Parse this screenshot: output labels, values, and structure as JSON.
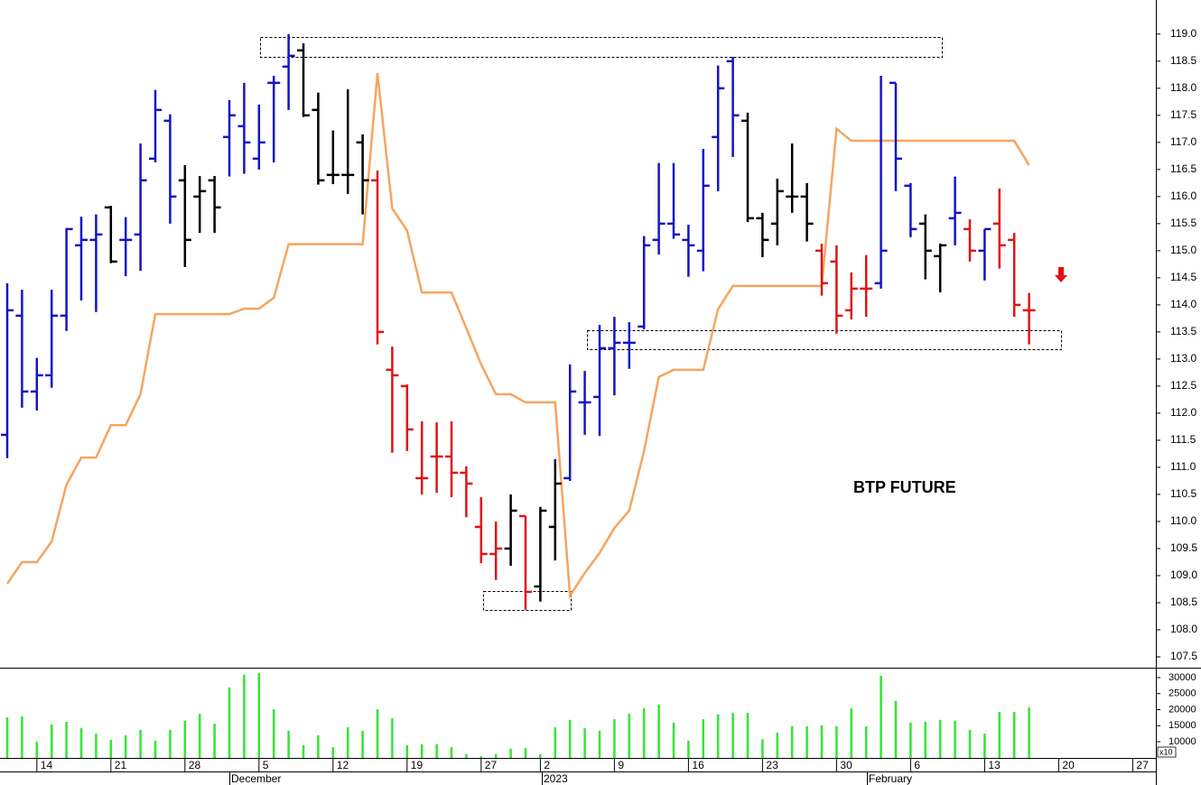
{
  "chart_data": {
    "type": "ohlc",
    "annotation": "BTP FUTURE",
    "categories": [
      null,
      null,
      "14",
      null,
      null,
      null,
      null,
      "21",
      null,
      null,
      null,
      null,
      "28",
      null,
      null,
      null,
      null,
      "5",
      null,
      null,
      null,
      null,
      "12",
      null,
      null,
      null,
      null,
      "19",
      null,
      null,
      null,
      null,
      "27",
      null,
      null,
      null,
      "2",
      null,
      null,
      null,
      null,
      "9",
      null,
      null,
      null,
      null,
      "16",
      null,
      null,
      null,
      null,
      "23",
      null,
      null,
      null,
      null,
      "30",
      null,
      null,
      null,
      null,
      "6",
      null,
      null,
      null,
      null,
      "13",
      null,
      null,
      null,
      null,
      "20",
      null,
      null,
      null,
      null,
      "27",
      null
    ],
    "period_labels": [
      "December",
      "2023",
      "February"
    ],
    "open": [
      111.6,
      113.8,
      112.4,
      112.7,
      113.8,
      115.1,
      115.2,
      115.8,
      115.2,
      115.3,
      116.7,
      117.4,
      116.3,
      116.0,
      116.3,
      117.1,
      117.3,
      116.7,
      118.1,
      118.4,
      118.7,
      117.6,
      116.4,
      116.4,
      117.0,
      116.3,
      112.8,
      112.5,
      110.8,
      111.2,
      111.2,
      110.9,
      109.9,
      109.4,
      109.5,
      110.1,
      108.8,
      109.9,
      110.8,
      112.2,
      112.3,
      113.2,
      113.3,
      113.6,
      115.2,
      115.5,
      115.2,
      115.0,
      117.1,
      118.5,
      117.4,
      115.6,
      115.5,
      116.0,
      116.0,
      115.0,
      114.8,
      113.9,
      114.3,
      114.4,
      118.1,
      116.2,
      115.5,
      114.9,
      115.6,
      115.4,
      115.0,
      115.5,
      115.2,
      113.9,
      null,
      null,
      null,
      null,
      null,
      null,
      null,
      null
    ],
    "high": [
      114.4,
      114.28,
      113.02,
      114.28,
      115.42,
      115.63,
      115.67,
      115.83,
      115.62,
      116.98,
      117.97,
      117.52,
      116.58,
      116.38,
      116.38,
      117.78,
      118.1,
      117.7,
      118.23,
      119.0,
      118.83,
      117.92,
      117.22,
      117.98,
      117.15,
      116.48,
      113.23,
      112.53,
      111.85,
      111.83,
      111.85,
      111.02,
      110.45,
      110.0,
      110.5,
      110.1,
      110.27,
      111.15,
      112.9,
      112.78,
      113.63,
      113.78,
      113.68,
      115.27,
      116.62,
      116.62,
      115.48,
      116.88,
      118.42,
      118.58,
      117.55,
      115.7,
      116.33,
      116.98,
      116.25,
      115.13,
      115.1,
      114.6,
      114.92,
      118.23,
      118.1,
      116.25,
      115.67,
      115.13,
      116.37,
      115.58,
      115.4,
      116.15,
      115.33,
      114.22,
      null,
      null,
      null,
      null,
      null,
      null,
      null,
      null
    ],
    "low": [
      111.17,
      112.1,
      112.05,
      112.47,
      113.52,
      114.08,
      113.87,
      114.77,
      114.53,
      114.63,
      116.63,
      115.5,
      114.7,
      115.33,
      115.33,
      116.37,
      116.42,
      116.5,
      116.63,
      117.6,
      117.47,
      116.22,
      116.23,
      116.05,
      115.67,
      113.27,
      111.27,
      111.3,
      110.5,
      110.53,
      110.45,
      110.08,
      109.23,
      108.92,
      109.18,
      108.37,
      108.52,
      109.28,
      110.75,
      111.6,
      111.58,
      112.33,
      112.82,
      113.55,
      114.93,
      115.22,
      114.52,
      114.62,
      116.1,
      116.73,
      115.53,
      114.88,
      115.1,
      115.7,
      115.17,
      114.17,
      113.47,
      113.73,
      113.78,
      114.3,
      116.1,
      115.25,
      114.47,
      114.23,
      115.1,
      114.8,
      114.45,
      114.67,
      113.78,
      113.27,
      null,
      null,
      null,
      null,
      null,
      null,
      null,
      null
    ],
    "close": [
      113.9,
      112.4,
      112.7,
      113.8,
      115.4,
      115.2,
      115.3,
      114.8,
      115.2,
      116.3,
      117.6,
      116.0,
      115.2,
      116.1,
      115.8,
      117.5,
      117.0,
      117.0,
      118.1,
      118.6,
      117.5,
      116.3,
      116.4,
      116.4,
      116.3,
      113.5,
      112.7,
      111.7,
      110.8,
      111.2,
      110.9,
      110.7,
      109.4,
      109.5,
      110.2,
      108.7,
      110.2,
      110.7,
      112.4,
      112.2,
      113.2,
      113.3,
      113.3,
      115.1,
      115.5,
      115.3,
      115.1,
      116.2,
      118.0,
      117.5,
      115.6,
      115.2,
      116.1,
      116.0,
      115.5,
      114.4,
      113.8,
      114.3,
      114.3,
      115.0,
      116.7,
      115.4,
      115.0,
      115.1,
      115.7,
      115.0,
      115.4,
      115.1,
      114.0,
      113.9,
      null,
      null,
      null,
      null,
      null,
      null,
      null,
      null
    ],
    "bar_colors": [
      "#1414c8",
      "#1414c8",
      "#1414c8",
      "#1414c8",
      "#1414c8",
      "#1414c8",
      "#1414c8",
      "#000000",
      "#1414c8",
      "#1414c8",
      "#1414c8",
      "#1414c8",
      "#000000",
      "#000000",
      "#000000",
      "#1414c8",
      "#1414c8",
      "#1414c8",
      "#1414c8",
      "#1414c8",
      "#000000",
      "#000000",
      "#000000",
      "#000000",
      "#000000",
      "#e01414",
      "#e01414",
      "#e01414",
      "#e01414",
      "#e01414",
      "#e01414",
      "#e01414",
      "#e01414",
      "#e01414",
      "#000000",
      "#e01414",
      "#000000",
      "#000000",
      "#1414c8",
      "#1414c8",
      "#1414c8",
      "#1414c8",
      "#1414c8",
      "#1414c8",
      "#1414c8",
      "#1414c8",
      "#1414c8",
      "#1414c8",
      "#1414c8",
      "#1414c8",
      "#000000",
      "#000000",
      "#000000",
      "#000000",
      "#000000",
      "#e01414",
      "#e01414",
      "#e01414",
      "#e01414",
      "#1414c8",
      "#1414c8",
      "#1414c8",
      "#000000",
      "#000000",
      "#1414c8",
      "#e01414",
      "#1414c8",
      "#e01414",
      "#e01414",
      "#e01414",
      null,
      null,
      null,
      null,
      null,
      null,
      null,
      null
    ],
    "stop_line": {
      "color": "#f5a560",
      "values": [
        108.85,
        109.25,
        109.25,
        109.63,
        110.68,
        111.18,
        111.18,
        111.78,
        111.78,
        112.35,
        113.83,
        113.83,
        113.83,
        113.83,
        113.83,
        113.83,
        113.93,
        113.93,
        114.13,
        115.12,
        115.12,
        115.12,
        115.12,
        115.12,
        115.12,
        118.28,
        115.78,
        115.37,
        114.23,
        114.23,
        114.23,
        113.57,
        112.9,
        112.35,
        112.35,
        112.2,
        112.2,
        112.2,
        108.63,
        109.05,
        109.42,
        109.88,
        110.2,
        111.3,
        112.67,
        112.8,
        112.8,
        112.8,
        113.92,
        114.35,
        114.35,
        114.35,
        114.35,
        114.35,
        114.35,
        114.35,
        117.25,
        117.03,
        117.03,
        117.03,
        117.03,
        117.03,
        117.03,
        117.03,
        117.03,
        117.03,
        117.03,
        117.03,
        117.03,
        116.58,
        null,
        null,
        null,
        null,
        null,
        null,
        null,
        null
      ]
    },
    "volume": {
      "color": "#33e633",
      "values": [
        17600,
        17900,
        10000,
        15400,
        16200,
        14200,
        12500,
        10600,
        12000,
        13700,
        10300,
        13700,
        16500,
        18700,
        15600,
        26900,
        30900,
        31400,
        20100,
        13400,
        8900,
        12000,
        8300,
        14500,
        13400,
        20100,
        17300,
        8900,
        9200,
        9200,
        8300,
        6100,
        5500,
        6100,
        7800,
        8000,
        6100,
        14500,
        16800,
        14200,
        13400,
        17000,
        18700,
        20400,
        21600,
        15900,
        10300,
        17000,
        18500,
        19000,
        19000,
        10800,
        12800,
        14800,
        14800,
        15100,
        14800,
        20400,
        14800,
        30600,
        22700,
        15900,
        16200,
        16800,
        16500,
        13700,
        12500,
        19300,
        19300,
        20700,
        null,
        null,
        null,
        null,
        null,
        null,
        null,
        null
      ]
    },
    "ylim": [
      107.3,
      119.63
    ],
    "yticks": [
      {
        "value": 107.5,
        "label": "107.5"
      },
      {
        "value": 108,
        "label": "108.0"
      },
      {
        "value": 108.5,
        "label": "108.5"
      },
      {
        "value": 109,
        "label": "109.0"
      },
      {
        "value": 109.5,
        "label": "109.5"
      },
      {
        "value": 110,
        "label": "110.0"
      },
      {
        "value": 110.5,
        "label": "110.5"
      },
      {
        "value": 111,
        "label": "111.0"
      },
      {
        "value": 111.5,
        "label": "111.5"
      },
      {
        "value": 112,
        "label": "112.0"
      },
      {
        "value": 112.5,
        "label": "112.5"
      },
      {
        "value": 113,
        "label": "113.0"
      },
      {
        "value": 113.5,
        "label": "113.5"
      },
      {
        "value": 114,
        "label": "114.0"
      },
      {
        "value": 114.5,
        "label": "114.5"
      },
      {
        "value": 115,
        "label": "115.0"
      },
      {
        "value": 115.5,
        "label": "115.5"
      },
      {
        "value": 116,
        "label": "116.0"
      },
      {
        "value": 116.5,
        "label": "116.5"
      },
      {
        "value": 117,
        "label": "117.0"
      },
      {
        "value": 117.5,
        "label": "117.5"
      },
      {
        "value": 118,
        "label": "118.0"
      },
      {
        "value": 118.5,
        "label": "118.5"
      },
      {
        "value": 119,
        "label": "119.0"
      }
    ],
    "y2lim": [
      4930,
      32800
    ],
    "y2ticks": [
      10000,
      15000,
      20000,
      25000,
      30000
    ],
    "y2_note": "x10"
  }
}
